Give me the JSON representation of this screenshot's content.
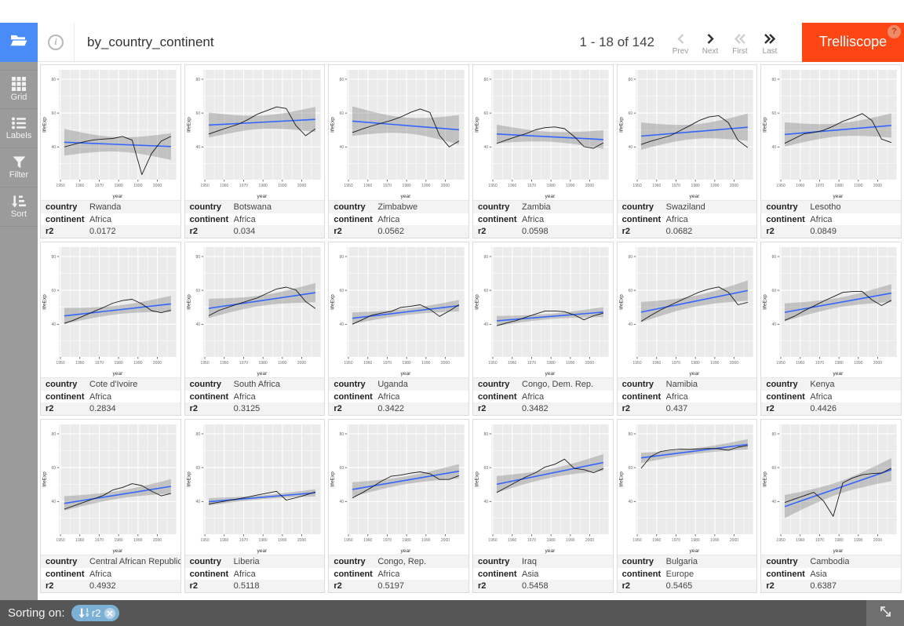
{
  "header": {
    "title": "by_country_continent",
    "pagination": {
      "range_text": "1 - 18 of 142",
      "buttons": [
        {
          "label": "Prev",
          "icon": "chevron-left-icon",
          "enabled": false
        },
        {
          "label": "Next",
          "icon": "chevron-right-icon",
          "enabled": true
        },
        {
          "label": "First",
          "icon": "double-chevron-left-icon",
          "enabled": false
        },
        {
          "label": "Last",
          "icon": "double-chevron-right-icon",
          "enabled": true
        }
      ]
    },
    "app_button": {
      "label": "Trelliscope",
      "badge": "?"
    }
  },
  "sidebar": {
    "items": [
      {
        "label": "Grid",
        "icon": "grid-icon"
      },
      {
        "label": "Labels",
        "icon": "labels-icon"
      },
      {
        "label": "Filter",
        "icon": "filter-icon"
      },
      {
        "label": "Sort",
        "icon": "sort-icon"
      }
    ]
  },
  "footer": {
    "sorting_label": "Sorting on:",
    "sort_chips": [
      {
        "field": "r2",
        "direction": "asc"
      }
    ],
    "fullscreen_icon": "expand-diagonal-icon"
  },
  "colors": {
    "accent_blue": "#4a8cf7",
    "brand_orange": "#fd4613",
    "chip_blue": "#7cb1d6",
    "smooth_line_blue": "#3366ff",
    "plot_background": "#ebebeb",
    "sidebar_gray": "#9b9b9b",
    "footer_gray": "#565656"
  },
  "panel_label_keys": [
    "country",
    "continent",
    "r2"
  ],
  "panels": [
    {
      "country": "Rwanda",
      "continent": "Africa",
      "r2": "0.0172"
    },
    {
      "country": "Botswana",
      "continent": "Africa",
      "r2": "0.034"
    },
    {
      "country": "Zimbabwe",
      "continent": "Africa",
      "r2": "0.0562"
    },
    {
      "country": "Zambia",
      "continent": "Africa",
      "r2": "0.0598"
    },
    {
      "country": "Swaziland",
      "continent": "Africa",
      "r2": "0.0682"
    },
    {
      "country": "Lesotho",
      "continent": "Africa",
      "r2": "0.0849"
    },
    {
      "country": "Cote d'Ivoire",
      "continent": "Africa",
      "r2": "0.2834"
    },
    {
      "country": "South Africa",
      "continent": "Africa",
      "r2": "0.3125"
    },
    {
      "country": "Uganda",
      "continent": "Africa",
      "r2": "0.3422"
    },
    {
      "country": "Congo, Dem. Rep.",
      "continent": "Africa",
      "r2": "0.3482"
    },
    {
      "country": "Namibia",
      "continent": "Africa",
      "r2": "0.437"
    },
    {
      "country": "Kenya",
      "continent": "Africa",
      "r2": "0.4426"
    },
    {
      "country": "Central African Republic",
      "continent": "Africa",
      "r2": "0.4932"
    },
    {
      "country": "Liberia",
      "continent": "Africa",
      "r2": "0.5118"
    },
    {
      "country": "Congo, Rep.",
      "continent": "Africa",
      "r2": "0.5197"
    },
    {
      "country": "Iraq",
      "continent": "Asia",
      "r2": "0.5458"
    },
    {
      "country": "Bulgaria",
      "continent": "Europe",
      "r2": "0.5465"
    },
    {
      "country": "Cambodia",
      "continent": "Asia",
      "r2": "0.6387"
    }
  ],
  "chart_data": {
    "type": "line",
    "xlabel": "year",
    "ylabel": "lifeExp",
    "x": [
      1952,
      1957,
      1962,
      1967,
      1972,
      1977,
      1982,
      1987,
      1992,
      1997,
      2002,
      2007
    ],
    "x_ticks": [
      1950,
      1960,
      1970,
      1980,
      1990,
      2000
    ],
    "x_minor": [
      1955,
      1965,
      1975,
      1985,
      1995,
      2005
    ],
    "y_ticks": [
      40,
      60,
      80
    ],
    "y_minor": [
      30,
      50,
      70
    ],
    "x_range": [
      1949.25,
      2009.75
    ],
    "y_range": [
      20.65,
      85.55
    ],
    "smooth": "linear fit with 95% confidence ribbon",
    "grid": true,
    "series": [
      {
        "name": "Rwanda",
        "values": [
          40.0,
          41.5,
          43.0,
          44.1,
          44.6,
          45.0,
          46.2,
          44.0,
          23.6,
          36.1,
          43.4,
          46.2
        ]
      },
      {
        "name": "Botswana",
        "values": [
          47.6,
          49.6,
          51.5,
          53.3,
          56.0,
          59.3,
          61.5,
          63.6,
          62.7,
          52.6,
          46.6,
          50.7
        ]
      },
      {
        "name": "Zimbabwe",
        "values": [
          48.5,
          50.5,
          52.4,
          54.0,
          55.6,
          57.7,
          60.4,
          62.4,
          60.4,
          46.8,
          40.0,
          43.5
        ]
      },
      {
        "name": "Zambia",
        "values": [
          42.0,
          44.1,
          46.0,
          47.8,
          50.1,
          51.4,
          51.8,
          50.8,
          46.1,
          40.2,
          39.2,
          42.4
        ]
      },
      {
        "name": "Swaziland",
        "values": [
          41.4,
          43.4,
          45.0,
          46.6,
          49.6,
          52.5,
          55.6,
          57.7,
          58.5,
          54.3,
          43.9,
          39.6
        ]
      },
      {
        "name": "Lesotho",
        "values": [
          42.1,
          45.0,
          47.7,
          48.5,
          49.8,
          52.2,
          55.1,
          57.2,
          59.7,
          55.6,
          44.6,
          42.6
        ]
      },
      {
        "name": "Cote d'Ivoire",
        "values": [
          40.5,
          42.5,
          44.9,
          47.4,
          49.8,
          52.4,
          54.0,
          54.7,
          52.0,
          48.0,
          46.8,
          48.3
        ]
      },
      {
        "name": "South Africa",
        "values": [
          45.0,
          48.0,
          50.0,
          51.9,
          53.7,
          55.5,
          58.2,
          60.8,
          61.9,
          60.2,
          53.4,
          49.3
        ]
      },
      {
        "name": "Uganda",
        "values": [
          40.0,
          42.6,
          45.3,
          46.5,
          47.6,
          49.9,
          50.6,
          51.5,
          48.8,
          44.6,
          47.8,
          51.5
        ]
      },
      {
        "name": "Congo, Dem. Rep.",
        "values": [
          39.1,
          40.7,
          42.1,
          44.1,
          46.0,
          47.8,
          47.8,
          47.4,
          45.5,
          42.6,
          45.0,
          46.5
        ]
      },
      {
        "name": "Namibia",
        "values": [
          41.7,
          45.2,
          48.4,
          51.2,
          53.9,
          56.4,
          59.0,
          60.8,
          62.0,
          58.9,
          51.5,
          52.9
        ]
      },
      {
        "name": "Kenya",
        "values": [
          42.3,
          44.7,
          47.9,
          50.7,
          53.6,
          56.2,
          58.8,
          59.3,
          59.3,
          54.4,
          51.0,
          54.1
        ]
      },
      {
        "name": "Central African Republic",
        "values": [
          35.5,
          37.5,
          39.5,
          41.5,
          43.5,
          46.8,
          48.3,
          50.5,
          49.4,
          46.1,
          43.3,
          44.7
        ]
      },
      {
        "name": "Liberia",
        "values": [
          38.5,
          39.5,
          40.5,
          41.5,
          42.6,
          43.8,
          44.9,
          46.0,
          40.8,
          42.2,
          43.8,
          45.7
        ]
      },
      {
        "name": "Congo, Rep.",
        "values": [
          42.1,
          45.1,
          48.4,
          52.0,
          54.9,
          55.6,
          56.7,
          57.5,
          56.4,
          53.0,
          53.0,
          55.3
        ]
      },
      {
        "name": "Iraq",
        "values": [
          45.3,
          48.4,
          51.5,
          54.5,
          57.0,
          60.4,
          62.0,
          65.0,
          59.5,
          58.8,
          57.0,
          59.5
        ]
      },
      {
        "name": "Bulgaria",
        "values": [
          59.6,
          66.6,
          69.5,
          70.4,
          70.9,
          70.8,
          71.1,
          71.3,
          71.2,
          70.3,
          72.1,
          73.0
        ]
      },
      {
        "name": "Cambodia",
        "values": [
          39.4,
          41.4,
          43.4,
          45.4,
          40.3,
          31.2,
          51.0,
          53.9,
          55.8,
          56.5,
          56.8,
          59.7
        ]
      }
    ]
  }
}
